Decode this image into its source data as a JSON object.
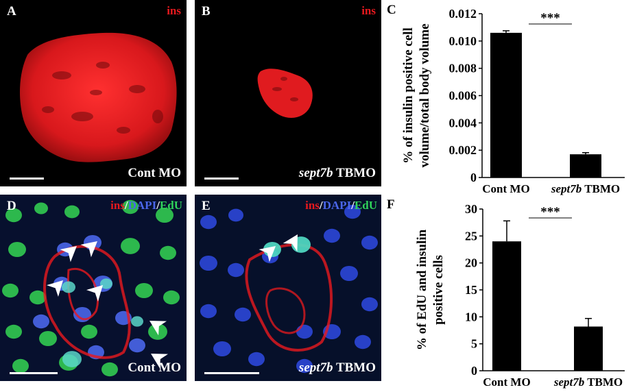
{
  "colors": {
    "insulin": "#e8191e",
    "dapi": "#3b57d6",
    "edu": "#2fd25a",
    "background": "#000000",
    "bar": "#000000"
  },
  "panels": {
    "a": {
      "letter": "A",
      "marker": "ins",
      "condition": "Cont MO"
    },
    "b": {
      "letter": "B",
      "marker": "ins",
      "condition_italic": "sept7b",
      "condition_rest": " TBMO"
    },
    "c": {
      "letter": "C"
    },
    "d": {
      "letter": "D",
      "marker_ins": "ins",
      "sep1": "/",
      "marker_dapi": "DAPI",
      "sep2": "/",
      "marker_edu": "EdU",
      "condition": "Cont MO"
    },
    "e": {
      "letter": "E",
      "marker_ins": "ins",
      "sep1": "/",
      "marker_dapi": "DAPI",
      "sep2": "/",
      "marker_edu": "EdU",
      "condition_italic": "sept7b",
      "condition_rest": " TBMO"
    },
    "f": {
      "letter": "F"
    }
  },
  "chart_data": [
    {
      "type": "bar",
      "panel": "C",
      "categories": [
        "Cont MO",
        "sept7b TBMO"
      ],
      "category_parts": [
        {
          "italic": "",
          "rest": "Cont MO"
        },
        {
          "italic": "sept7b",
          "rest": " TBMO"
        }
      ],
      "values": [
        0.0106,
        0.0017
      ],
      "errors": [
        0.00015,
        0.00012
      ],
      "ylabel_line1": "% of insulin positive cell",
      "ylabel_line2": "volume/total body volume",
      "ylim": [
        0,
        0.012
      ],
      "yticks": [
        "0",
        "0.002",
        "0.004",
        "0.006",
        "0.008",
        "0.010",
        "0.012"
      ],
      "significance": "***",
      "grid": false
    },
    {
      "type": "bar",
      "panel": "F",
      "categories": [
        "Cont MO",
        "sept7b TBMO"
      ],
      "category_parts": [
        {
          "italic": "",
          "rest": "Cont MO"
        },
        {
          "italic": "sept7b",
          "rest": " TBMO"
        }
      ],
      "values": [
        24,
        8.2
      ],
      "errors": [
        3.8,
        1.5
      ],
      "ylabel_line1": "% of EdU and insulin",
      "ylabel_line2": "positive cells",
      "ylim": [
        0,
        30
      ],
      "yticks": [
        "0",
        "5",
        "10",
        "15",
        "20",
        "25",
        "30"
      ],
      "significance": "***",
      "grid": false
    }
  ]
}
